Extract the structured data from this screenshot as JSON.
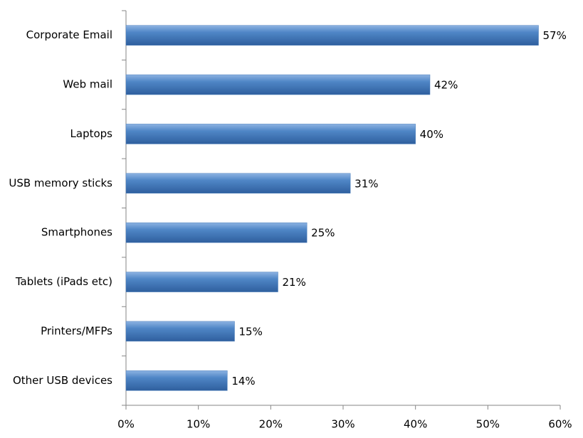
{
  "chart_data": {
    "type": "bar",
    "orientation": "horizontal",
    "categories": [
      "Corporate Email",
      "Web mail",
      "Laptops",
      "USB memory sticks",
      "Smartphones",
      "Tablets (iPads etc)",
      "Printers/MFPs",
      "Other USB devices"
    ],
    "values": [
      57,
      42,
      40,
      31,
      25,
      21,
      15,
      14
    ],
    "value_labels": [
      "57%",
      "42%",
      "40%",
      "31%",
      "25%",
      "21%",
      "15%",
      "14%"
    ],
    "color": "#4a7ebb",
    "xlim": [
      0,
      60
    ],
    "xticks": [
      {
        "value": 0,
        "label": "0%"
      },
      {
        "value": 10,
        "label": "10%"
      },
      {
        "value": 20,
        "label": "20%"
      },
      {
        "value": 30,
        "label": "30%"
      },
      {
        "value": 40,
        "label": "40%"
      },
      {
        "value": 50,
        "label": "50%"
      },
      {
        "value": 60,
        "label": "60%"
      }
    ],
    "grid": false
  }
}
